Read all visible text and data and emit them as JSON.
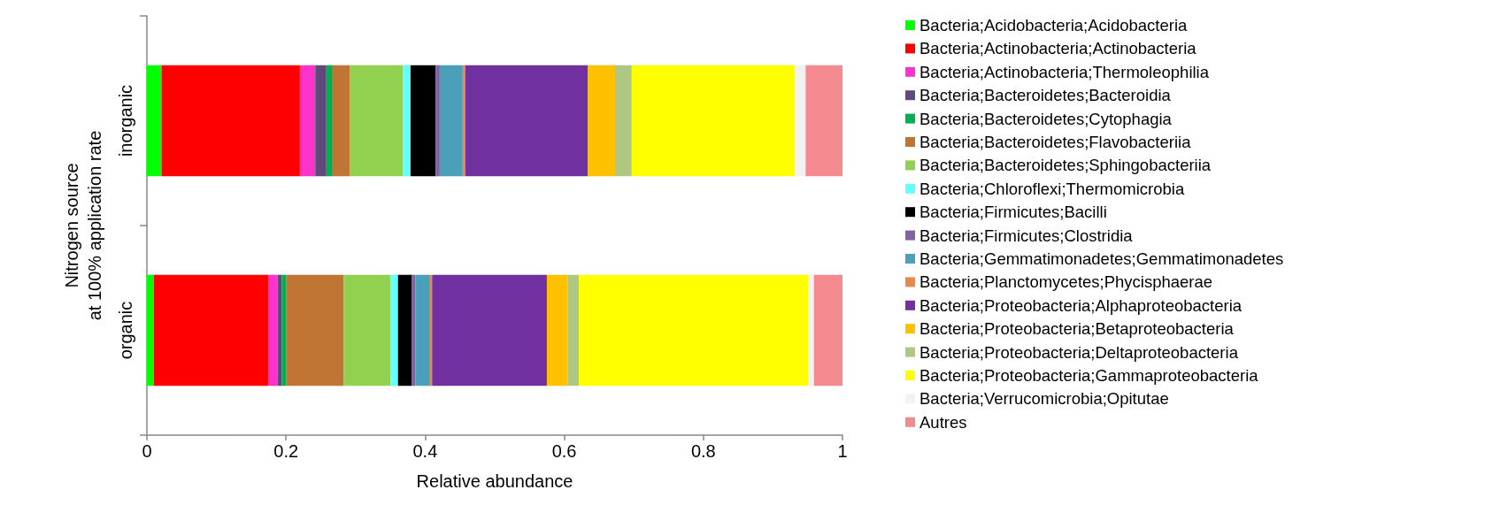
{
  "chart_data": {
    "type": "bar",
    "orientation": "horizontal",
    "stacked": true,
    "xlabel": "Relative abundance",
    "ylabel": "Nitrogen source\nat 100% application rate",
    "categories": [
      "inorganic",
      "organic"
    ],
    "xlim": [
      0,
      1
    ],
    "xticks": [
      0,
      0.2,
      0.4,
      0.6,
      0.8,
      1
    ],
    "grid": false,
    "legend": "right",
    "series": [
      {
        "name": "Bacteria;Acidobacteria;Acidobacteria",
        "color": "#00ff00",
        "values": [
          0.021,
          0.01
        ]
      },
      {
        "name": "Bacteria;Actinobacteria;Actinobacteria",
        "color": "#ff0000",
        "values": [
          0.199,
          0.165
        ]
      },
      {
        "name": "Bacteria;Actinobacteria;Thermoleophilia",
        "color": "#ff33cc",
        "values": [
          0.022,
          0.013
        ]
      },
      {
        "name": "Bacteria;Bacteroidetes;Bacteroidia",
        "color": "#604a7b",
        "values": [
          0.016,
          0.006
        ]
      },
      {
        "name": "Bacteria;Bacteroidetes;Cytophagia",
        "color": "#00b050",
        "values": [
          0.009,
          0.006
        ]
      },
      {
        "name": "Bacteria;Bacteroidetes;Flavobacteriia",
        "color": "#c07535",
        "values": [
          0.025,
          0.083
        ]
      },
      {
        "name": "Bacteria;Bacteroidetes;Sphingobacteriia",
        "color": "#92d050",
        "values": [
          0.076,
          0.067
        ]
      },
      {
        "name": "Bacteria;Chloroflexi;Thermomicrobia",
        "color": "#66ffff",
        "values": [
          0.011,
          0.011
        ]
      },
      {
        "name": "Bacteria;Firmicutes;Bacilli",
        "color": "#000000",
        "values": [
          0.036,
          0.02
        ]
      },
      {
        "name": "Bacteria;Firmicutes;Clostridia",
        "color": "#8064a2",
        "values": [
          0.006,
          0.005
        ]
      },
      {
        "name": "Bacteria;Gemmatimonadetes;Gemmatimonadetes",
        "color": "#4aa0b8",
        "values": [
          0.033,
          0.021
        ]
      },
      {
        "name": "Bacteria;Planctomycetes;Phycisphaerae",
        "color": "#e8884a",
        "values": [
          0.004,
          0.003
        ]
      },
      {
        "name": "Bacteria;Proteobacteria;Alphaproteobacteria",
        "color": "#7030a0",
        "values": [
          0.176,
          0.165
        ]
      },
      {
        "name": "Bacteria;Proteobacteria;Betaproteobacteria",
        "color": "#ffc000",
        "values": [
          0.039,
          0.03
        ]
      },
      {
        "name": "Bacteria;Proteobacteria;Deltaproteobacteria",
        "color": "#aec785",
        "values": [
          0.024,
          0.016
        ]
      },
      {
        "name": "Bacteria;Proteobacteria;Gammaproteobacteria",
        "color": "#ffff00",
        "values": [
          0.235,
          0.33
        ]
      },
      {
        "name": "Bacteria;Verrucomicrobia;Opitutae",
        "color": "#f2f2f2",
        "values": [
          0.015,
          0.008
        ]
      },
      {
        "name": "Autres",
        "color": "#f48a90",
        "values": [
          0.053,
          0.041
        ]
      }
    ]
  }
}
